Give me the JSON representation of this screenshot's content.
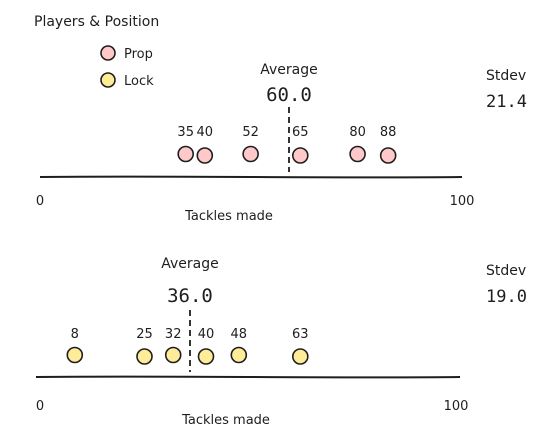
{
  "legend": {
    "title": "Players & Position",
    "items": [
      {
        "label": "Prop",
        "color": "#ffc9c9"
      },
      {
        "label": "Lock",
        "color": "#ffec99"
      }
    ]
  },
  "chart_data": [
    {
      "type": "scatter",
      "series": [
        {
          "name": "Prop",
          "values": [
            35,
            40,
            52,
            65,
            80,
            88
          ],
          "color": "#ffc9c9"
        }
      ],
      "average_label": "Average",
      "average_value": "60.0",
      "stdev_label": "Stdev",
      "stdev_value": "21.4",
      "xlabel": "Tackles made",
      "x_ticks": [
        "0",
        "100"
      ],
      "xlim": [
        0,
        100
      ]
    },
    {
      "type": "scatter",
      "series": [
        {
          "name": "Lock",
          "values": [
            8,
            25,
            32,
            40,
            48,
            63
          ],
          "color": "#ffec99"
        }
      ],
      "average_label": "Average",
      "average_value": "36.0",
      "stdev_label": "Stdev",
      "stdev_value": "19.0",
      "xlabel": "Tackles made",
      "x_ticks": [
        "0",
        "100"
      ],
      "xlim": [
        0,
        100
      ]
    }
  ]
}
